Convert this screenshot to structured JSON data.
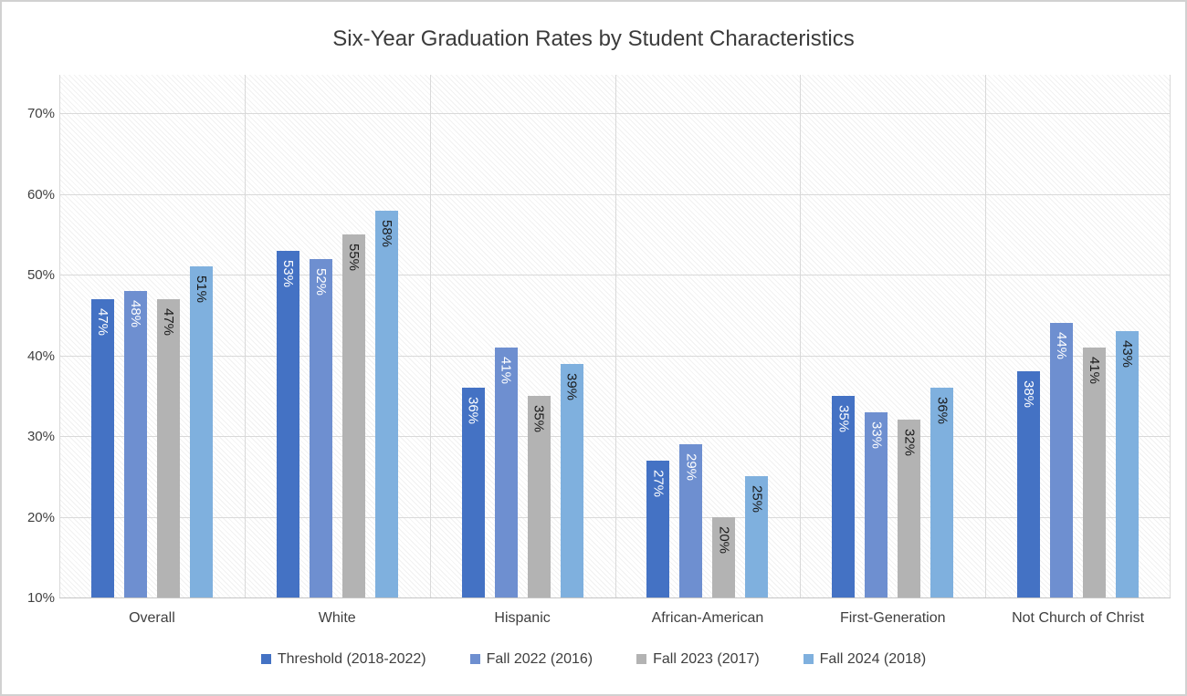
{
  "title": "Six-Year Graduation Rates by Student Characteristics",
  "chart_data": {
    "type": "bar",
    "title": "Six-Year Graduation Rates by Student Characteristics",
    "categories": [
      "Overall",
      "White",
      "Hispanic",
      "African-American",
      "First-Generation",
      "Not Church of Christ"
    ],
    "series": [
      {
        "name": "Threshold (2018-2022)",
        "color": "#4472C4",
        "label_color": "#FFFFFF",
        "values": [
          47,
          53,
          36,
          27,
          35,
          38
        ]
      },
      {
        "name": "Fall 2022 (2016)",
        "color": "#6E8FD0",
        "label_color": "#FFFFFF",
        "values": [
          48,
          52,
          41,
          29,
          33,
          44
        ]
      },
      {
        "name": "Fall 2023 (2017)",
        "color": "#B3B3B3",
        "label_color": "#1A1A1A",
        "values": [
          47,
          55,
          35,
          20,
          32,
          41
        ]
      },
      {
        "name": "Fall 2024 (2018)",
        "color": "#7FB0DE",
        "label_color": "#1A1A1A",
        "values": [
          51,
          58,
          39,
          25,
          36,
          43
        ]
      }
    ],
    "value_suffix": "%",
    "data_label_rotation": "vertical-top-to-bottom",
    "y_axis": {
      "min": 10,
      "max": 75,
      "tick_step": 10,
      "ticks": [
        "10%",
        "20%",
        "30%",
        "40%",
        "50%",
        "60%",
        "70%"
      ]
    },
    "x_axis_label": "",
    "y_axis_label": "",
    "grid": true,
    "legend_position": "bottom",
    "plot_background": "hatched",
    "gridline_color": "#D9D9D9"
  }
}
